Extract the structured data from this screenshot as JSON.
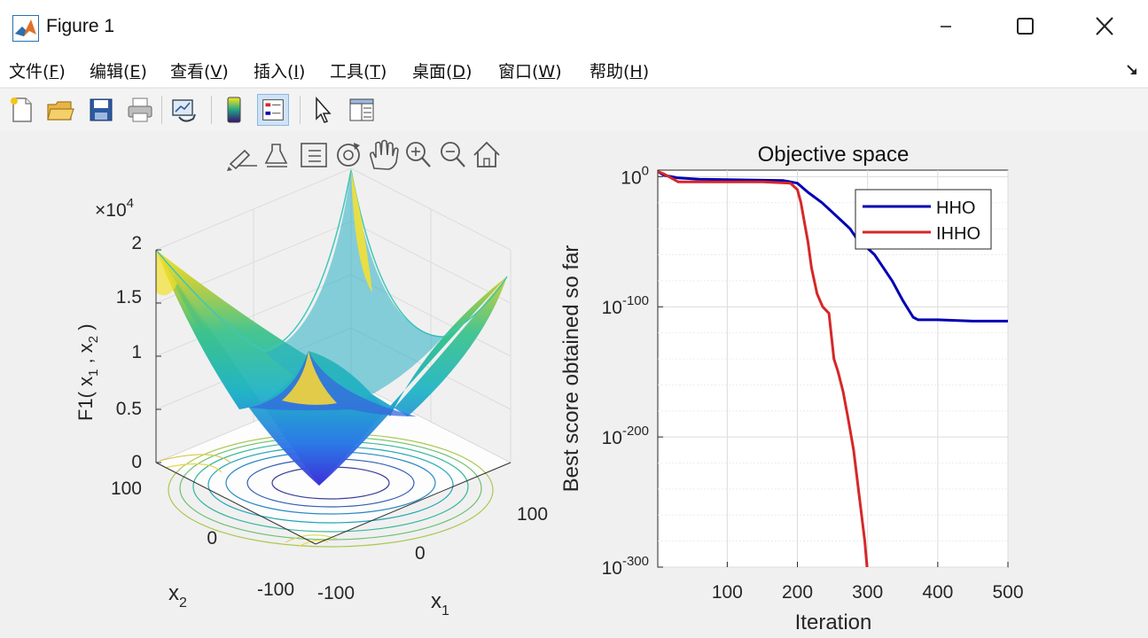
{
  "window": {
    "title": "Figure 1"
  },
  "menu": {
    "items": [
      {
        "key": "file",
        "label": "文件(",
        "mn": "F",
        ")": ")"
      },
      {
        "key": "edit",
        "label": "编辑(",
        "mn": "E"
      },
      {
        "key": "view",
        "label": "查看(",
        "mn": "V"
      },
      {
        "key": "insert",
        "label": "插入(",
        "mn": "I"
      },
      {
        "key": "tools",
        "label": "工具(",
        "mn": "T"
      },
      {
        "key": "desktop",
        "label": "桌面(",
        "mn": "D"
      },
      {
        "key": "window",
        "label": "窗口(",
        "mn": "W"
      },
      {
        "key": "help",
        "label": "帮助(",
        "mn": "H"
      }
    ],
    "close_paren": ")"
  },
  "toolbar": {
    "icons": [
      "new-figure-icon",
      "open-file-icon",
      "save-icon",
      "print-icon",
      "link-plot-icon",
      "insert-colorbar-icon",
      "insert-legend-icon",
      "edit-plot-icon",
      "property-inspector-icon"
    ]
  },
  "axes_toolbar": {
    "icons": [
      "brush-icon",
      "data-tips-icon",
      "legend-toggle-icon",
      "rotate-3d-icon",
      "pan-icon",
      "zoom-in-icon",
      "zoom-out-icon",
      "home-icon"
    ]
  },
  "left_plot": {
    "z_exponent_base": "×10",
    "z_exponent_power": "4",
    "z_ticks": [
      "2",
      "1.5",
      "1",
      "0.5",
      "0"
    ],
    "z_label_main": "F1( x",
    "z_label_sub1": "1",
    "z_label_sep": " , x",
    "z_label_sub2": "2",
    "z_label_end": " )",
    "x2_ticks": [
      "100",
      "0",
      "-100"
    ],
    "x1_ticks": [
      "-100",
      "0",
      "100"
    ],
    "x1_label": "x",
    "x1_label_sub": "1",
    "x2_label": "x",
    "x2_label_sub": "2"
  },
  "chart_data": {
    "type": "line",
    "title": "Objective space",
    "xlabel": "Iteration",
    "ylabel": "Best score obtained so far",
    "yscale": "log",
    "xlim": [
      1,
      500
    ],
    "ylim_exponent": [
      -300,
      5
    ],
    "xticks": [
      "100",
      "200",
      "300",
      "400",
      "500"
    ],
    "yticks": [
      {
        "base": "10",
        "exp": "0",
        "value_exp": 0
      },
      {
        "base": "10",
        "exp": "-100",
        "value_exp": -100
      },
      {
        "base": "10",
        "exp": "-200",
        "value_exp": -200
      },
      {
        "base": "10",
        "exp": "-300",
        "value_exp": -300
      }
    ],
    "grid": true,
    "legend_position": "top-right",
    "series": [
      {
        "name": "HHO",
        "color": "#0000b3",
        "x": [
          1,
          10,
          30,
          60,
          120,
          180,
          200,
          215,
          235,
          255,
          275,
          290,
          300,
          310,
          320,
          335,
          350,
          365,
          372,
          400,
          450,
          500
        ],
        "log10_y": [
          4,
          1,
          -1,
          -2,
          -2.5,
          -3,
          -5,
          -12,
          -20,
          -30,
          -40,
          -52,
          -55,
          -60,
          -68,
          -80,
          -95,
          -108,
          -110,
          -110,
          -111,
          -111
        ]
      },
      {
        "name": "IHHO",
        "color": "#d62728",
        "x": [
          1,
          10,
          30,
          80,
          150,
          190,
          200,
          205,
          210,
          215,
          220,
          228,
          236,
          245,
          252,
          258,
          265,
          272,
          280,
          288,
          296,
          300
        ],
        "log10_y": [
          4,
          2,
          -4,
          -4,
          -4,
          -5,
          -10,
          -20,
          -35,
          -50,
          -70,
          -90,
          -100,
          -105,
          -140,
          -150,
          -165,
          -185,
          -210,
          -245,
          -280,
          -305
        ]
      }
    ]
  },
  "colors": {
    "hho": "#0000b3",
    "ihho": "#d62728",
    "grid": "#e2e2e2"
  }
}
